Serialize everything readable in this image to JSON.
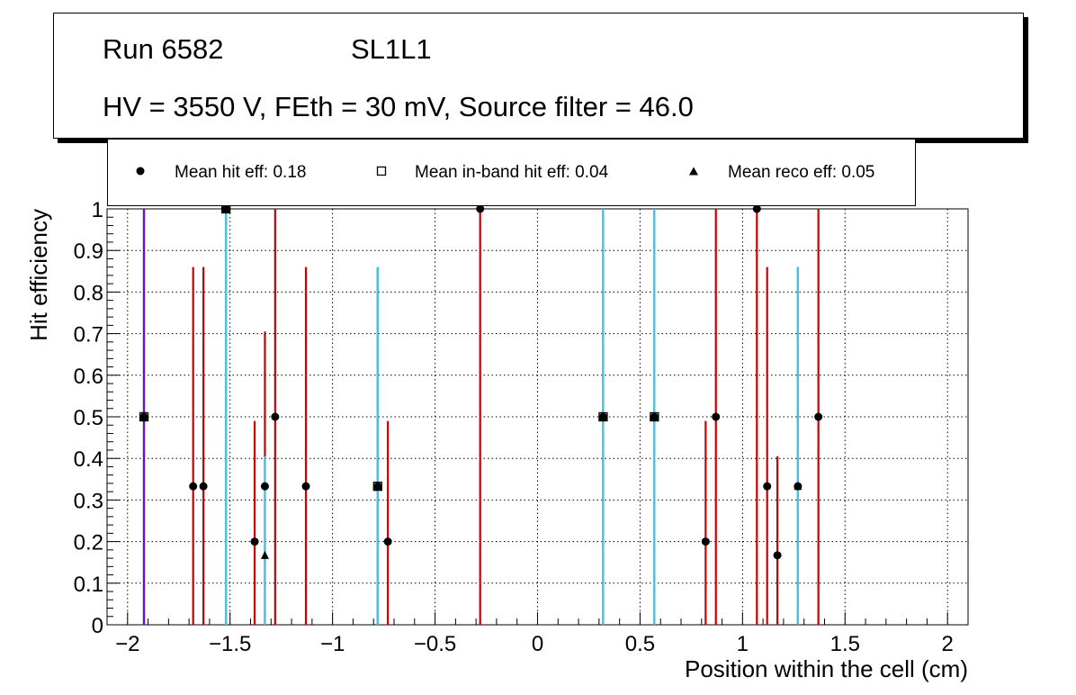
{
  "chart_data": {
    "type": "scatter",
    "title": {
      "run": "Run 6582",
      "chamber": "SL1L1",
      "conditions": "HV = 3550 V, FEth = 30 mV, Source filter = 46.0"
    },
    "xlabel": "Position within the cell (cm)",
    "ylabel": "Hit efficiency",
    "xlim": [
      -2.1,
      2.1
    ],
    "ylim": [
      0,
      1
    ],
    "x_ticks": [
      -2,
      -1.5,
      -1,
      -0.5,
      0,
      0.5,
      1,
      1.5,
      2
    ],
    "x_tick_labels": [
      "−2",
      "−1.5",
      "−1",
      "−0.5",
      "0",
      "0.5",
      "1",
      "1.5",
      "2"
    ],
    "y_ticks": [
      0,
      0.1,
      0.2,
      0.3,
      0.4,
      0.5,
      0.6,
      0.7,
      0.8,
      0.9,
      1
    ],
    "y_tick_labels": [
      "0",
      "0.1",
      "0.2",
      "0.3",
      "0.4",
      "0.5",
      "0.6",
      "0.7",
      "0.8",
      "0.9",
      "1"
    ],
    "grid": true,
    "legend": {
      "position": "top",
      "entries": [
        {
          "label": "Mean hit  eff: 0.18",
          "marker": "filled-circle"
        },
        {
          "label": "Mean in-band hit eff: 0.04",
          "marker": "open-square"
        },
        {
          "label": "Mean reco eff: 0.05",
          "marker": "filled-triangle"
        }
      ]
    },
    "series": [
      {
        "name": "Mean hit eff",
        "marker": "filled-circle",
        "error_color": "#cc0000",
        "points": [
          {
            "x": -1.92,
            "y": 0.5,
            "ylo": 0.0,
            "yhi": 1.0
          },
          {
            "x": -1.68,
            "y": 0.333,
            "ylo": 0.0,
            "yhi": 0.86
          },
          {
            "x": -1.63,
            "y": 0.333,
            "ylo": 0.0,
            "yhi": 0.86
          },
          {
            "x": -1.52,
            "y": 1.0,
            "ylo": 0.0,
            "yhi": 1.0
          },
          {
            "x": -1.38,
            "y": 0.2,
            "ylo": 0.0,
            "yhi": 0.49
          },
          {
            "x": -1.33,
            "y": 0.333,
            "ylo": 0.0,
            "yhi": 0.705
          },
          {
            "x": -1.28,
            "y": 0.5,
            "ylo": 0.0,
            "yhi": 1.0
          },
          {
            "x": -1.13,
            "y": 0.333,
            "ylo": 0.0,
            "yhi": 0.86
          },
          {
            "x": -0.78,
            "y": 0.333,
            "ylo": 0.0,
            "yhi": 0.86
          },
          {
            "x": -0.73,
            "y": 0.2,
            "ylo": 0.0,
            "yhi": 0.49
          },
          {
            "x": -0.28,
            "y": 1.0,
            "ylo": 0.0,
            "yhi": 1.0
          },
          {
            "x": 0.32,
            "y": 0.5,
            "ylo": 0.0,
            "yhi": 1.0
          },
          {
            "x": 0.57,
            "y": 0.5,
            "ylo": 0.0,
            "yhi": 1.0
          },
          {
            "x": 0.82,
            "y": 0.2,
            "ylo": 0.0,
            "yhi": 0.49
          },
          {
            "x": 0.87,
            "y": 0.5,
            "ylo": 0.0,
            "yhi": 1.0
          },
          {
            "x": 1.07,
            "y": 1.0,
            "ylo": 0.0,
            "yhi": 1.0
          },
          {
            "x": 1.12,
            "y": 0.333,
            "ylo": 0.0,
            "yhi": 0.86
          },
          {
            "x": 1.17,
            "y": 0.167,
            "ylo": 0.0,
            "yhi": 0.405
          },
          {
            "x": 1.27,
            "y": 0.333,
            "ylo": 0.0,
            "yhi": 0.86
          },
          {
            "x": 1.37,
            "y": 0.5,
            "ylo": 0.0,
            "yhi": 1.0
          }
        ]
      },
      {
        "name": "Mean in-band hit eff",
        "marker": "open-square",
        "error_color": "#44c4e8",
        "points": [
          {
            "x": -1.92,
            "y": 0.5,
            "ylo": 0.0,
            "yhi": 1.0
          },
          {
            "x": -1.52,
            "y": 1.0,
            "ylo": 0.0,
            "yhi": 1.0
          },
          {
            "x": -0.78,
            "y": 0.333,
            "ylo": 0.0,
            "yhi": 0.86
          },
          {
            "x": 0.32,
            "y": 0.5,
            "ylo": 0.0,
            "yhi": 1.0
          },
          {
            "x": 0.57,
            "y": 0.5,
            "ylo": 0.0,
            "yhi": 1.0
          }
        ]
      },
      {
        "name": "Mean reco eff",
        "marker": "filled-triangle",
        "error_color": "#44c4e8",
        "points": [
          {
            "x": -1.92,
            "y": 0.5,
            "ylo": 0.0,
            "yhi": 1.0
          },
          {
            "x": -1.52,
            "y": 1.0,
            "ylo": 0.0,
            "yhi": 1.0
          },
          {
            "x": -1.33,
            "y": 0.167,
            "ylo": 0.0,
            "yhi": 0.405
          },
          {
            "x": -0.78,
            "y": 0.333,
            "ylo": 0.0,
            "yhi": 0.86
          },
          {
            "x": 0.32,
            "y": 0.5,
            "ylo": 0.0,
            "yhi": 1.0
          },
          {
            "x": 0.57,
            "y": 0.5,
            "ylo": 0.0,
            "yhi": 1.0
          },
          {
            "x": 1.27,
            "y": 0.333,
            "ylo": 0.0,
            "yhi": 0.86
          }
        ]
      }
    ],
    "extra_error_bars": [
      {
        "x": -1.92,
        "ylo": 0.0,
        "yhi": 1.0,
        "color": "#6a0fc8"
      }
    ]
  }
}
